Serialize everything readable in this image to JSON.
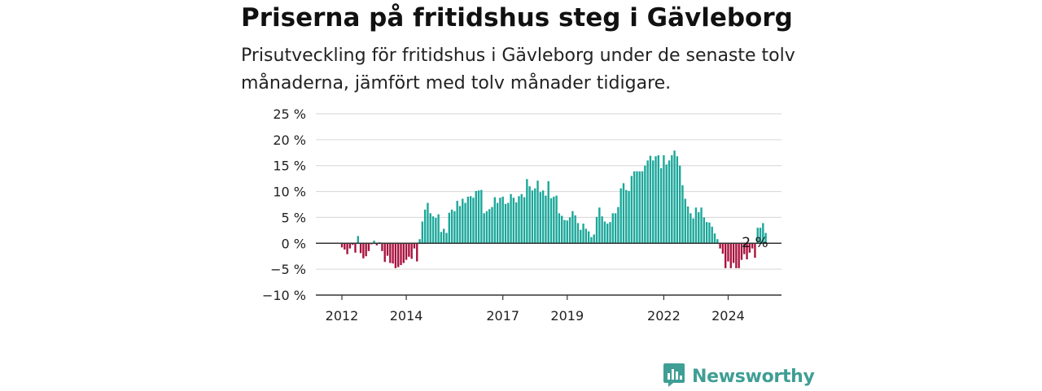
{
  "title": "Priserna på fritidshus steg i Gävleborg",
  "subtitle": "Prisutveckling för fritidshus i Gävleborg under de senaste tolv månaderna, jämfört med tolv månader tidigare.",
  "brand": {
    "name": "Newsworthy",
    "icon": "newsworthy-logo-icon",
    "color": "#3f9e95"
  },
  "colors": {
    "positive": "#1aa79a",
    "negative": "#a8123e",
    "grid": "#d6d6d6",
    "zero_line": "#333333"
  },
  "chart_data": {
    "type": "bar",
    "ylim": [
      -10,
      25
    ],
    "yticks": [
      25,
      20,
      15,
      10,
      5,
      0,
      -5,
      -10
    ],
    "ytick_labels": [
      "25 %",
      "20 %",
      "15 %",
      "10 %",
      "5 %",
      "0 %",
      "−5 %",
      "−10 %"
    ],
    "xticks": [
      {
        "label": "2012",
        "index": 0
      },
      {
        "label": "2014",
        "index": 24
      },
      {
        "label": "2017",
        "index": 60
      },
      {
        "label": "2019",
        "index": 84
      },
      {
        "label": "2022",
        "index": 120
      },
      {
        "label": "2024",
        "index": 144
      }
    ],
    "start": "2012-01",
    "frequency": "monthly",
    "grid": true,
    "annotation": {
      "label": "2 %",
      "index": 154
    },
    "values": [
      -0.8,
      -1.2,
      -2.1,
      -1.0,
      -0.3,
      -1.8,
      1.4,
      -1.9,
      -2.9,
      -2.5,
      -1.5,
      -0.2,
      0.5,
      -0.4,
      0.2,
      -1.5,
      -3.6,
      -2.4,
      -3.8,
      -3.9,
      -4.8,
      -4.6,
      -4.2,
      -3.8,
      -3.2,
      -2.6,
      -3.0,
      -1.0,
      -3.5,
      0.8,
      4.2,
      6.5,
      7.8,
      5.8,
      5.2,
      4.9,
      5.6,
      2.2,
      2.8,
      2.0,
      5.9,
      6.5,
      6.2,
      8.2,
      7.2,
      8.6,
      7.8,
      9.0,
      9.1,
      8.8,
      10.1,
      10.2,
      10.3,
      5.8,
      6.2,
      6.6,
      7.0,
      8.9,
      7.8,
      8.8,
      9.0,
      7.6,
      7.8,
      9.5,
      8.8,
      7.9,
      9.1,
      9.5,
      8.9,
      12.4,
      11.0,
      10.2,
      10.6,
      12.1,
      9.9,
      10.2,
      9.2,
      12.0,
      8.7,
      9.0,
      9.2,
      5.8,
      5.3,
      4.5,
      4.4,
      5.0,
      6.2,
      5.4,
      3.9,
      2.6,
      3.8,
      2.8,
      2.3,
      1.2,
      1.7,
      5.1,
      6.9,
      5.2,
      4.2,
      3.8,
      4.1,
      5.8,
      5.8,
      7.0,
      10.6,
      11.6,
      10.3,
      10.1,
      13.0,
      13.9,
      13.9,
      13.9,
      13.9,
      15.0,
      16.0,
      16.9,
      16.0,
      16.8,
      17.0,
      14.5,
      17.0,
      15.2,
      16.0,
      17.0,
      17.9,
      16.8,
      15.0,
      11.2,
      8.6,
      7.1,
      5.8,
      4.8,
      6.9,
      6.0,
      6.9,
      5.0,
      4.1,
      4.0,
      3.2,
      1.9,
      0.8,
      -1.0,
      -2.0,
      -4.8,
      -3.5,
      -4.8,
      -3.8,
      -4.8,
      -4.8,
      -3.2,
      -2.1,
      -3.1,
      -1.8,
      -1.0,
      -2.8,
      3.0,
      3.0,
      3.9,
      2.0
    ]
  }
}
